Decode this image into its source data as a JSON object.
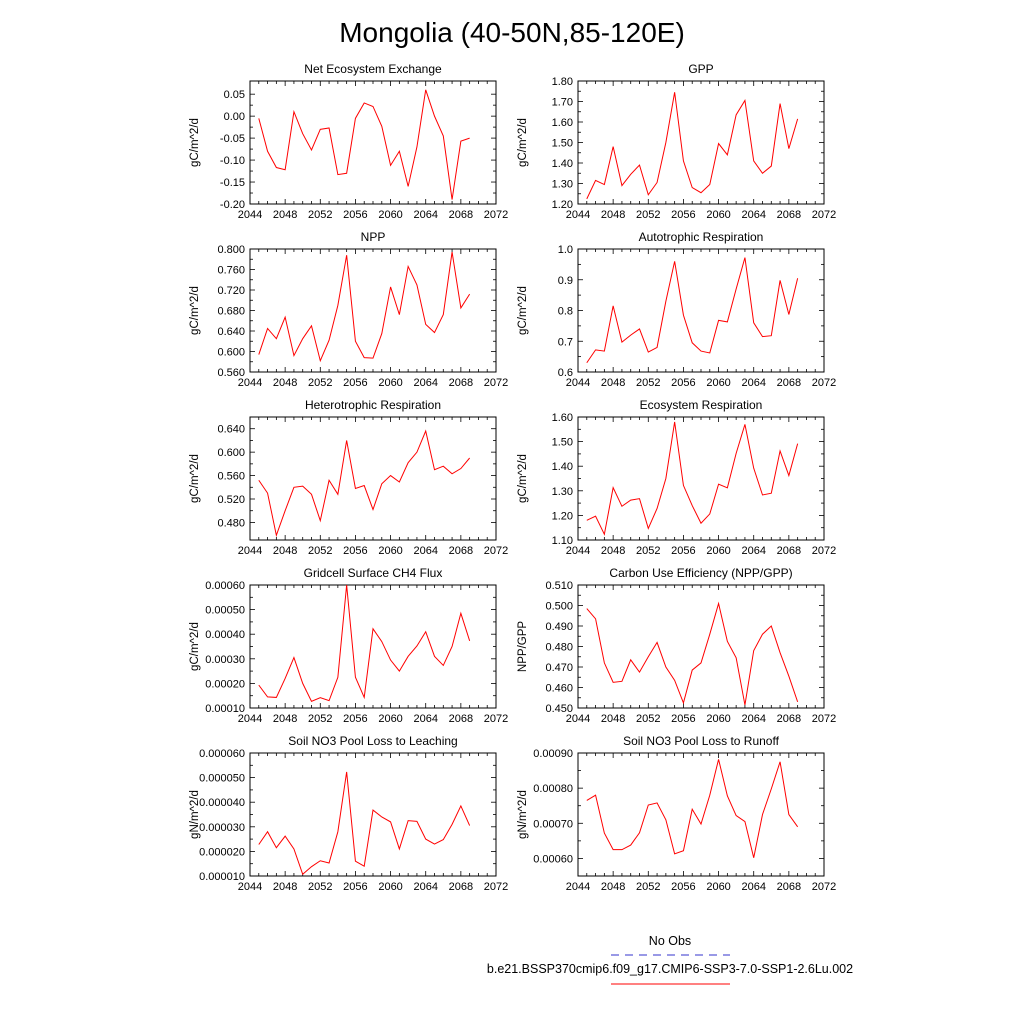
{
  "page": {
    "title": "Mongolia (40-50N,85-120E)"
  },
  "colors": {
    "series": "#ff0000",
    "obs": "#3333cc",
    "axis": "#000000"
  },
  "legend": {
    "items": [
      {
        "label": "No Obs",
        "color": "#3333cc",
        "style": "dashed"
      },
      {
        "label": "b.e21.BSSP370cmip6.f09_g17.CMIP6-SSP3-7.0-SSP1-2.6Lu.002",
        "color": "#ff0000",
        "style": "solid"
      }
    ]
  },
  "chart_data": [
    {
      "type": "line",
      "title": "Net Ecosystem Exchange",
      "ylabel": "gC/m^2/d",
      "xlim": [
        2044,
        2072
      ],
      "x_ticks": [
        2044,
        2048,
        2052,
        2056,
        2060,
        2064,
        2068,
        2072
      ],
      "x_tick_labels": [
        "2044",
        "2048",
        "2052",
        "2056",
        "2060",
        "2064",
        "2068",
        "2072"
      ],
      "ylim": [
        -0.2,
        0.08
      ],
      "y_ticks": [
        -0.2,
        -0.15,
        -0.1,
        -0.05,
        0.0,
        0.05
      ],
      "y_tick_labels": [
        "-0.20",
        "-0.15",
        "-0.10",
        "-0.05",
        "0.00",
        "0.05"
      ],
      "x": [
        2045,
        2046,
        2047,
        2048,
        2049,
        2050,
        2051,
        2052,
        2053,
        2054,
        2055,
        2056,
        2057,
        2058,
        2059,
        2060,
        2061,
        2062,
        2063,
        2064,
        2065,
        2066,
        2067,
        2068,
        2069
      ],
      "y": [
        -0.005,
        -0.08,
        -0.117,
        -0.122,
        0.01,
        -0.04,
        -0.077,
        -0.03,
        -0.027,
        -0.133,
        -0.13,
        -0.005,
        0.03,
        0.022,
        -0.023,
        -0.112,
        -0.08,
        -0.16,
        -0.07,
        0.06,
        0.0,
        -0.045,
        -0.19,
        -0.057,
        -0.05
      ]
    },
    {
      "type": "line",
      "title": "GPP",
      "ylabel": "gC/m^2/d",
      "xlim": [
        2044,
        2072
      ],
      "x_ticks": [
        2044,
        2048,
        2052,
        2056,
        2060,
        2064,
        2068,
        2072
      ],
      "x_tick_labels": [
        "2044",
        "2048",
        "2052",
        "2056",
        "2060",
        "2064",
        "2068",
        "2072"
      ],
      "ylim": [
        1.2,
        1.8
      ],
      "y_ticks": [
        1.2,
        1.3,
        1.4,
        1.5,
        1.6,
        1.7,
        1.8
      ],
      "y_tick_labels": [
        "1.20",
        "1.30",
        "1.40",
        "1.50",
        "1.60",
        "1.70",
        "1.80"
      ],
      "x": [
        2045,
        2046,
        2047,
        2048,
        2049,
        2050,
        2051,
        2052,
        2053,
        2054,
        2055,
        2056,
        2057,
        2058,
        2059,
        2060,
        2061,
        2062,
        2063,
        2064,
        2065,
        2066,
        2067,
        2068,
        2069
      ],
      "y": [
        1.225,
        1.315,
        1.295,
        1.48,
        1.29,
        1.345,
        1.39,
        1.245,
        1.305,
        1.5,
        1.745,
        1.41,
        1.28,
        1.255,
        1.295,
        1.495,
        1.44,
        1.635,
        1.705,
        1.41,
        1.35,
        1.385,
        1.69,
        1.47,
        1.615
      ]
    },
    {
      "type": "line",
      "title": "NPP",
      "ylabel": "gC/m^2/d",
      "xlim": [
        2044,
        2072
      ],
      "x_ticks": [
        2044,
        2048,
        2052,
        2056,
        2060,
        2064,
        2068,
        2072
      ],
      "x_tick_labels": [
        "2044",
        "2048",
        "2052",
        "2056",
        "2060",
        "2064",
        "2068",
        "2072"
      ],
      "ylim": [
        0.56,
        0.8
      ],
      "y_ticks": [
        0.56,
        0.6,
        0.64,
        0.68,
        0.72,
        0.76,
        0.8
      ],
      "y_tick_labels": [
        "0.560",
        "0.600",
        "0.640",
        "0.680",
        "0.720",
        "0.760",
        "0.800"
      ],
      "x": [
        2045,
        2046,
        2047,
        2048,
        2049,
        2050,
        2051,
        2052,
        2053,
        2054,
        2055,
        2056,
        2057,
        2058,
        2059,
        2060,
        2061,
        2062,
        2063,
        2064,
        2065,
        2066,
        2067,
        2068,
        2069
      ],
      "y": [
        0.594,
        0.645,
        0.625,
        0.667,
        0.592,
        0.625,
        0.65,
        0.582,
        0.622,
        0.69,
        0.788,
        0.62,
        0.588,
        0.587,
        0.635,
        0.726,
        0.672,
        0.766,
        0.73,
        0.653,
        0.637,
        0.672,
        0.794,
        0.685,
        0.712
      ]
    },
    {
      "type": "line",
      "title": "Autotrophic Respiration",
      "ylabel": "gC/m^2/d",
      "xlim": [
        2044,
        2072
      ],
      "x_ticks": [
        2044,
        2048,
        2052,
        2056,
        2060,
        2064,
        2068,
        2072
      ],
      "x_tick_labels": [
        "2044",
        "2048",
        "2052",
        "2056",
        "2060",
        "2064",
        "2068",
        "2072"
      ],
      "ylim": [
        0.6,
        1.0
      ],
      "y_ticks": [
        0.6,
        0.7,
        0.8,
        0.9,
        1.0
      ],
      "y_tick_labels": [
        "0.6",
        "0.7",
        "0.8",
        "0.9",
        "1.0"
      ],
      "x": [
        2045,
        2046,
        2047,
        2048,
        2049,
        2050,
        2051,
        2052,
        2053,
        2054,
        2055,
        2056,
        2057,
        2058,
        2059,
        2060,
        2061,
        2062,
        2063,
        2064,
        2065,
        2066,
        2067,
        2068,
        2069
      ],
      "y": [
        0.63,
        0.672,
        0.668,
        0.815,
        0.697,
        0.72,
        0.74,
        0.665,
        0.68,
        0.83,
        0.96,
        0.785,
        0.695,
        0.668,
        0.662,
        0.768,
        0.763,
        0.87,
        0.972,
        0.76,
        0.715,
        0.718,
        0.898,
        0.787,
        0.905
      ]
    },
    {
      "type": "line",
      "title": "Heterotrophic Respiration",
      "ylabel": "gC/m^2/d",
      "xlim": [
        2044,
        2072
      ],
      "x_ticks": [
        2044,
        2048,
        2052,
        2056,
        2060,
        2064,
        2068,
        2072
      ],
      "x_tick_labels": [
        "2044",
        "2048",
        "2052",
        "2056",
        "2060",
        "2064",
        "2068",
        "2072"
      ],
      "ylim": [
        0.45,
        0.66
      ],
      "y_ticks": [
        0.48,
        0.52,
        0.56,
        0.6,
        0.64
      ],
      "y_tick_labels": [
        "0.480",
        "0.520",
        "0.560",
        "0.600",
        "0.640"
      ],
      "x": [
        2045,
        2046,
        2047,
        2048,
        2049,
        2050,
        2051,
        2052,
        2053,
        2054,
        2055,
        2056,
        2057,
        2058,
        2059,
        2060,
        2061,
        2062,
        2063,
        2064,
        2065,
        2066,
        2067,
        2068,
        2069
      ],
      "y": [
        0.552,
        0.53,
        0.458,
        0.5,
        0.54,
        0.542,
        0.528,
        0.483,
        0.552,
        0.528,
        0.62,
        0.538,
        0.543,
        0.502,
        0.546,
        0.56,
        0.549,
        0.582,
        0.6,
        0.636,
        0.57,
        0.576,
        0.563,
        0.572,
        0.59
      ]
    },
    {
      "type": "line",
      "title": "Ecosystem Respiration",
      "ylabel": "gC/m^2/d",
      "xlim": [
        2044,
        2072
      ],
      "x_ticks": [
        2044,
        2048,
        2052,
        2056,
        2060,
        2064,
        2068,
        2072
      ],
      "x_tick_labels": [
        "2044",
        "2048",
        "2052",
        "2056",
        "2060",
        "2064",
        "2068",
        "2072"
      ],
      "ylim": [
        1.1,
        1.6
      ],
      "y_ticks": [
        1.1,
        1.2,
        1.3,
        1.4,
        1.5,
        1.6
      ],
      "y_tick_labels": [
        "1.10",
        "1.20",
        "1.30",
        "1.40",
        "1.50",
        "1.60"
      ],
      "x": [
        2045,
        2046,
        2047,
        2048,
        2049,
        2050,
        2051,
        2052,
        2053,
        2054,
        2055,
        2056,
        2057,
        2058,
        2059,
        2060,
        2061,
        2062,
        2063,
        2064,
        2065,
        2066,
        2067,
        2068,
        2069
      ],
      "y": [
        1.18,
        1.197,
        1.123,
        1.313,
        1.237,
        1.262,
        1.268,
        1.147,
        1.228,
        1.35,
        1.58,
        1.322,
        1.24,
        1.168,
        1.206,
        1.327,
        1.312,
        1.452,
        1.57,
        1.392,
        1.283,
        1.29,
        1.462,
        1.362,
        1.492
      ]
    },
    {
      "type": "line",
      "title": "Gridcell Surface CH4 Flux",
      "ylabel": "gC/m^2/d",
      "xlim": [
        2044,
        2072
      ],
      "x_ticks": [
        2044,
        2048,
        2052,
        2056,
        2060,
        2064,
        2068,
        2072
      ],
      "x_tick_labels": [
        "2044",
        "2048",
        "2052",
        "2056",
        "2060",
        "2064",
        "2068",
        "2072"
      ],
      "ylim": [
        0.0001,
        0.0006
      ],
      "y_ticks": [
        0.0001,
        0.0002,
        0.0003,
        0.0004,
        0.0005,
        0.0006
      ],
      "y_tick_labels": [
        "0.00010",
        "0.00020",
        "0.00030",
        "0.00040",
        "0.00050",
        "0.00060"
      ],
      "x": [
        2045,
        2046,
        2047,
        2048,
        2049,
        2050,
        2051,
        2052,
        2053,
        2054,
        2055,
        2056,
        2057,
        2058,
        2059,
        2060,
        2061,
        2062,
        2063,
        2064,
        2065,
        2066,
        2067,
        2068,
        2069
      ],
      "y": [
        0.000193,
        0.000145,
        0.000143,
        0.00022,
        0.000305,
        0.0002,
        0.000127,
        0.000142,
        0.00013,
        0.000225,
        0.0006,
        0.000225,
        0.000143,
        0.000422,
        0.00037,
        0.000295,
        0.00025,
        0.00031,
        0.000352,
        0.00041,
        0.00031,
        0.000273,
        0.00035,
        0.000485,
        0.000373
      ]
    },
    {
      "type": "line",
      "title": "Carbon Use Efficiency (NPP/GPP)",
      "ylabel": "NPP/GPP",
      "xlim": [
        2044,
        2072
      ],
      "x_ticks": [
        2044,
        2048,
        2052,
        2056,
        2060,
        2064,
        2068,
        2072
      ],
      "x_tick_labels": [
        "2044",
        "2048",
        "2052",
        "2056",
        "2060",
        "2064",
        "2068",
        "2072"
      ],
      "ylim": [
        0.45,
        0.51
      ],
      "y_ticks": [
        0.45,
        0.46,
        0.47,
        0.48,
        0.49,
        0.5,
        0.51
      ],
      "y_tick_labels": [
        "0.450",
        "0.460",
        "0.470",
        "0.480",
        "0.490",
        "0.500",
        "0.510"
      ],
      "x": [
        2045,
        2046,
        2047,
        2048,
        2049,
        2050,
        2051,
        2052,
        2053,
        2054,
        2055,
        2056,
        2057,
        2058,
        2059,
        2060,
        2061,
        2062,
        2063,
        2064,
        2065,
        2066,
        2067,
        2068,
        2069
      ],
      "y": [
        0.4985,
        0.4935,
        0.472,
        0.4625,
        0.463,
        0.4735,
        0.4675,
        0.475,
        0.482,
        0.47,
        0.4635,
        0.4525,
        0.4685,
        0.472,
        0.486,
        0.501,
        0.4825,
        0.4745,
        0.4515,
        0.478,
        0.486,
        0.49,
        0.477,
        0.4655,
        0.453
      ]
    },
    {
      "type": "line",
      "title": "Soil NO3 Pool Loss to Leaching",
      "ylabel": "gN/m^2/d",
      "xlim": [
        2044,
        2072
      ],
      "x_ticks": [
        2044,
        2048,
        2052,
        2056,
        2060,
        2064,
        2068,
        2072
      ],
      "x_tick_labels": [
        "2044",
        "2048",
        "2052",
        "2056",
        "2060",
        "2064",
        "2068",
        "2072"
      ],
      "ylim": [
        1e-05,
        6e-05
      ],
      "y_ticks": [
        1e-05,
        2e-05,
        3e-05,
        4e-05,
        5e-05,
        6e-05
      ],
      "y_tick_labels": [
        "0.000010",
        "0.000020",
        "0.000030",
        "0.000040",
        "0.000050",
        "0.000060"
      ],
      "x": [
        2045,
        2046,
        2047,
        2048,
        2049,
        2050,
        2051,
        2052,
        2053,
        2054,
        2055,
        2056,
        2057,
        2058,
        2059,
        2060,
        2061,
        2062,
        2063,
        2064,
        2065,
        2066,
        2067,
        2068,
        2069
      ],
      "y": [
        2.28e-05,
        2.8e-05,
        2.15e-05,
        2.62e-05,
        2.1e-05,
        1.07e-05,
        1.38e-05,
        1.62e-05,
        1.53e-05,
        2.8e-05,
        5.23e-05,
        1.6e-05,
        1.4e-05,
        3.68e-05,
        3.4e-05,
        3.2e-05,
        2.1e-05,
        3.25e-05,
        3.22e-05,
        2.5e-05,
        2.3e-05,
        2.48e-05,
        3.1e-05,
        3.85e-05,
        3.05e-05
      ]
    },
    {
      "type": "line",
      "title": "Soil NO3 Pool Loss to Runoff",
      "ylabel": "gN/m^2/d",
      "xlim": [
        2044,
        2072
      ],
      "x_ticks": [
        2044,
        2048,
        2052,
        2056,
        2060,
        2064,
        2068,
        2072
      ],
      "x_tick_labels": [
        "2044",
        "2048",
        "2052",
        "2056",
        "2060",
        "2064",
        "2068",
        "2072"
      ],
      "ylim": [
        0.00055,
        0.0009
      ],
      "y_ticks": [
        0.0006,
        0.0007,
        0.0008,
        0.0009
      ],
      "y_tick_labels": [
        "0.00060",
        "0.00070",
        "0.00080",
        "0.00090"
      ],
      "x": [
        2045,
        2046,
        2047,
        2048,
        2049,
        2050,
        2051,
        2052,
        2053,
        2054,
        2055,
        2056,
        2057,
        2058,
        2059,
        2060,
        2061,
        2062,
        2063,
        2064,
        2065,
        2066,
        2067,
        2068,
        2069
      ],
      "y": [
        0.000765,
        0.00078,
        0.000672,
        0.000625,
        0.000625,
        0.000638,
        0.000673,
        0.000752,
        0.000758,
        0.00071,
        0.000613,
        0.000622,
        0.00074,
        0.000698,
        0.00078,
        0.000882,
        0.000778,
        0.000722,
        0.000705,
        0.000602,
        0.000725,
        0.000798,
        0.000875,
        0.000725,
        0.00069
      ]
    }
  ]
}
